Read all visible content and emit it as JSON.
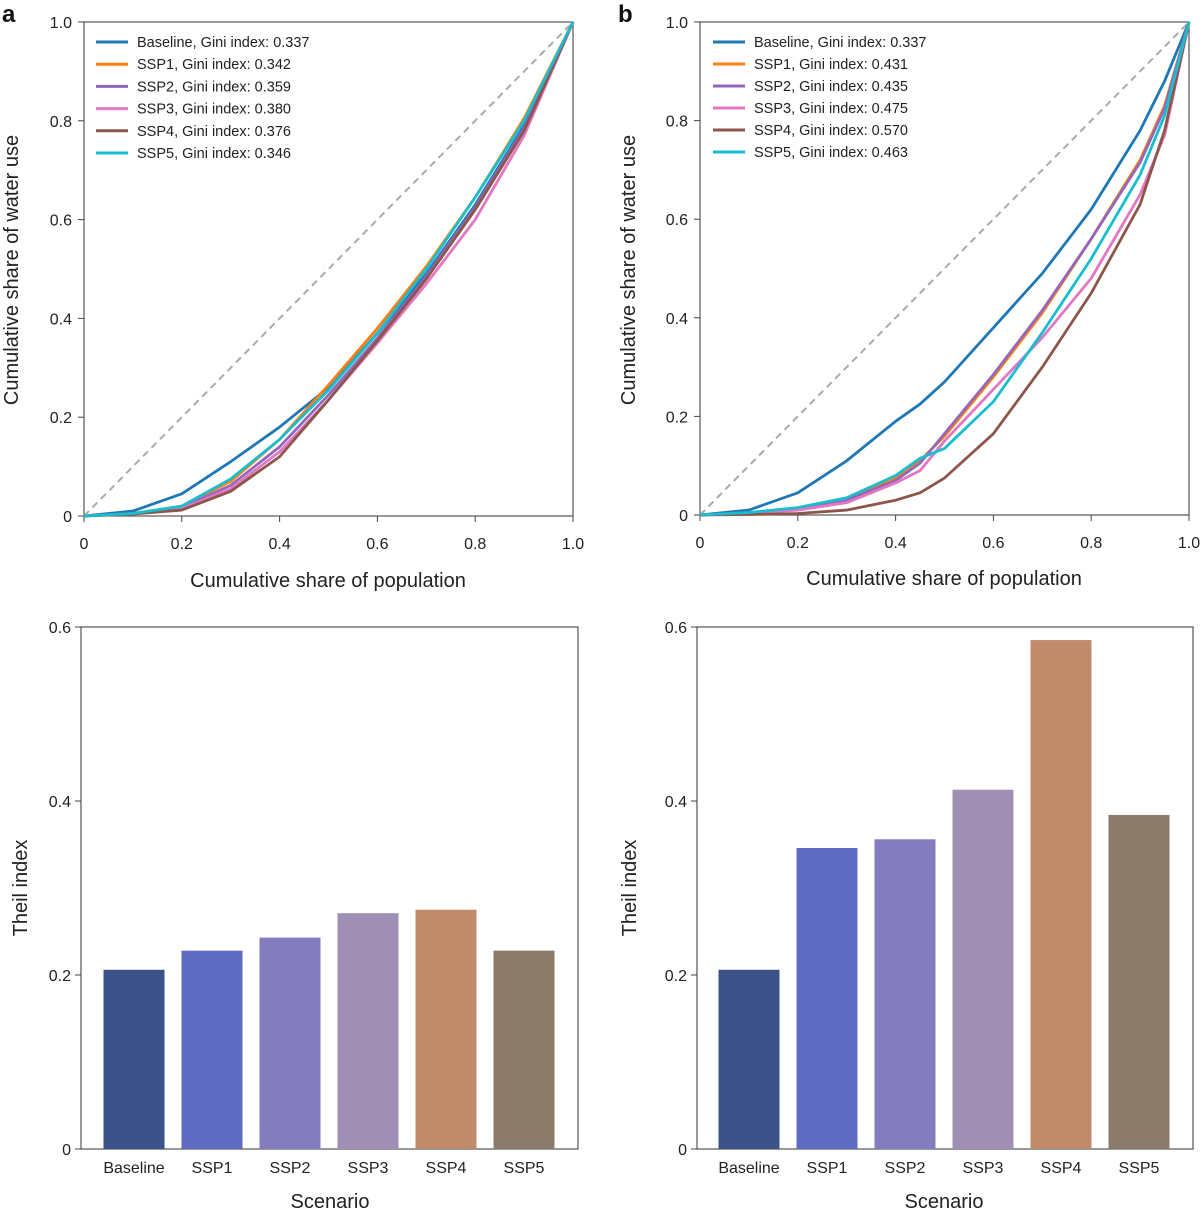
{
  "chart_data": [
    {
      "panel": "a",
      "type": "line",
      "xlabel": "Cumulative share of population",
      "ylabel": "Cumulative share of water use",
      "xlim": [
        0,
        1
      ],
      "ylim": [
        0,
        1
      ],
      "xticks": [
        "0",
        "0.2",
        "0.4",
        "0.6",
        "0.8",
        "1.0"
      ],
      "yticks": [
        "0",
        "0.2",
        "0.4",
        "0.6",
        "0.8",
        "1.0"
      ],
      "equality_line": {
        "style": "dashed",
        "color": "#aaaaaa"
      },
      "legend_position": "top-left",
      "x": [
        0,
        0.1,
        0.2,
        0.3,
        0.4,
        0.5,
        0.6,
        0.7,
        0.8,
        0.9,
        1.0
      ],
      "series": [
        {
          "name": "Baseline, Gini index: 0.337",
          "color": "#1f77b4",
          "y": [
            0,
            0.01,
            0.045,
            0.11,
            0.18,
            0.26,
            0.37,
            0.49,
            0.63,
            0.79,
            1.0
          ]
        },
        {
          "name": "SSP1, Gini index: 0.342",
          "color": "#ff7f0e",
          "y": [
            0,
            0.005,
            0.02,
            0.07,
            0.155,
            0.265,
            0.38,
            0.505,
            0.645,
            0.805,
            1.0
          ]
        },
        {
          "name": "SSP2, Gini index: 0.359",
          "color": "#9467bd",
          "y": [
            0,
            0.005,
            0.017,
            0.062,
            0.14,
            0.245,
            0.36,
            0.485,
            0.625,
            0.785,
            1.0
          ]
        },
        {
          "name": "SSP3, Gini index: 0.380",
          "color": "#e377c2",
          "y": [
            0,
            0.004,
            0.015,
            0.055,
            0.13,
            0.235,
            0.35,
            0.47,
            0.6,
            0.77,
            1.0
          ]
        },
        {
          "name": "SSP4, Gini index: 0.376",
          "color": "#8c564b",
          "y": [
            0,
            0.004,
            0.012,
            0.05,
            0.12,
            0.235,
            0.355,
            0.48,
            0.62,
            0.78,
            1.0
          ]
        },
        {
          "name": "SSP5, Gini index: 0.346",
          "color": "#17becf",
          "y": [
            0,
            0.005,
            0.02,
            0.075,
            0.155,
            0.255,
            0.37,
            0.5,
            0.645,
            0.8,
            1.0
          ]
        }
      ]
    },
    {
      "panel": "b",
      "type": "line",
      "xlabel": "Cumulative share of population",
      "ylabel": "Cumulative share of water use",
      "xlim": [
        0,
        1
      ],
      "ylim": [
        0,
        1
      ],
      "xticks": [
        "0",
        "0.2",
        "0.4",
        "0.6",
        "0.8",
        "1.0"
      ],
      "yticks": [
        "0",
        "0.2",
        "0.4",
        "0.6",
        "0.8",
        "1.0"
      ],
      "equality_line": {
        "style": "dashed",
        "color": "#aaaaaa"
      },
      "legend_position": "top-left",
      "x": [
        0,
        0.1,
        0.2,
        0.3,
        0.4,
        0.45,
        0.5,
        0.6,
        0.7,
        0.8,
        0.9,
        0.95,
        1.0
      ],
      "series": [
        {
          "name": "Baseline, Gini index: 0.337",
          "color": "#1f77b4",
          "y": [
            0,
            0.01,
            0.045,
            0.11,
            0.19,
            0.225,
            0.27,
            0.38,
            0.49,
            0.62,
            0.78,
            0.88,
            1.0
          ]
        },
        {
          "name": "SSP1, Gini index: 0.431",
          "color": "#ff7f0e",
          "y": [
            0,
            0.004,
            0.012,
            0.03,
            0.075,
            0.11,
            0.16,
            0.28,
            0.41,
            0.56,
            0.72,
            0.83,
            1.0
          ]
        },
        {
          "name": "SSP2, Gini index: 0.435",
          "color": "#9467bd",
          "y": [
            0,
            0.004,
            0.012,
            0.03,
            0.07,
            0.105,
            0.165,
            0.285,
            0.415,
            0.56,
            0.715,
            0.825,
            1.0
          ]
        },
        {
          "name": "SSP3, Gini index: 0.475",
          "color": "#e377c2",
          "y": [
            0,
            0.004,
            0.01,
            0.025,
            0.065,
            0.09,
            0.15,
            0.255,
            0.36,
            0.48,
            0.65,
            0.77,
            1.0
          ]
        },
        {
          "name": "SSP4, Gini index: 0.570",
          "color": "#8c564b",
          "y": [
            0,
            0.001,
            0.003,
            0.01,
            0.03,
            0.045,
            0.075,
            0.165,
            0.3,
            0.45,
            0.63,
            0.78,
            1.0
          ]
        },
        {
          "name": "SSP5, Gini index: 0.463",
          "color": "#17becf",
          "y": [
            0,
            0.005,
            0.015,
            0.035,
            0.08,
            0.115,
            0.135,
            0.23,
            0.37,
            0.52,
            0.69,
            0.81,
            1.0
          ]
        }
      ]
    },
    {
      "panel": "a-bottom",
      "type": "bar",
      "xlabel": "Scenario",
      "ylabel": "Theil index",
      "ylim": [
        0,
        0.6
      ],
      "yticks": [
        "0",
        "0.2",
        "0.4",
        "0.6"
      ],
      "categories": [
        "Baseline",
        "SSP1",
        "SSP2",
        "SSP3",
        "SSP4",
        "SSP5"
      ],
      "values": [
        0.206,
        0.228,
        0.243,
        0.271,
        0.275,
        0.228
      ],
      "colors": [
        "#3b528b",
        "#5f6bc2",
        "#837dc0",
        "#a08fb4",
        "#c08a6b",
        "#8c7a6a"
      ]
    },
    {
      "panel": "b-bottom",
      "type": "bar",
      "xlabel": "Scenario",
      "ylabel": "Theil index",
      "ylim": [
        0,
        0.6
      ],
      "yticks": [
        "0",
        "0.2",
        "0.4",
        "0.6"
      ],
      "categories": [
        "Baseline",
        "SSP1",
        "SSP2",
        "SSP3",
        "SSP4",
        "SSP5"
      ],
      "values": [
        0.206,
        0.346,
        0.356,
        0.413,
        0.585,
        0.384
      ],
      "colors": [
        "#3b528b",
        "#5f6bc2",
        "#837dc0",
        "#a08fb4",
        "#c08a6b",
        "#8c7a6a"
      ]
    }
  ]
}
